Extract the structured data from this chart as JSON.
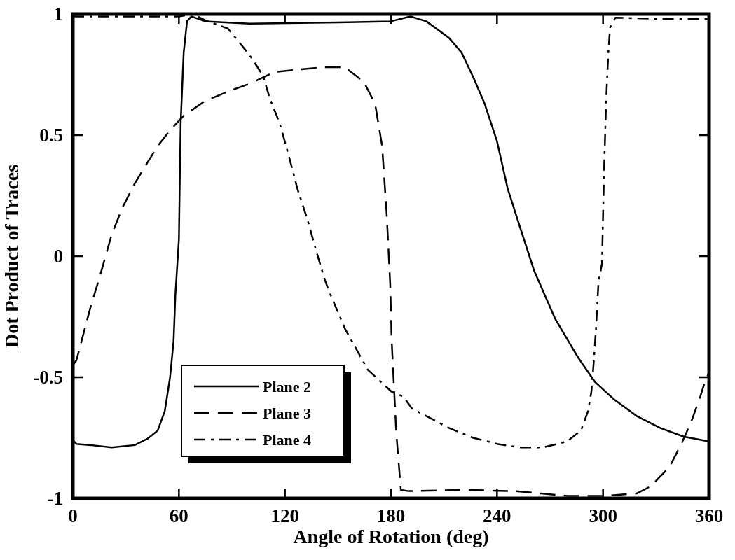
{
  "chart_data": {
    "type": "line",
    "xlabel": "Angle of Rotation (deg)",
    "ylabel": "Dot Product of Traces",
    "xlim": [
      0,
      360
    ],
    "xticks": [
      0,
      60,
      120,
      180,
      240,
      300,
      360
    ],
    "ylim": [
      -1,
      1
    ],
    "yticks": [
      -1,
      -0.5,
      0,
      0.5,
      1
    ],
    "grid": false,
    "legend": "bottom left",
    "series": [
      {
        "name": "Plane 2",
        "color": "#000000",
        "line_style": "solid",
        "x": [
          0,
          2,
          10,
          22,
          35,
          42,
          48,
          52,
          55,
          57,
          58,
          60,
          61,
          62.7,
          64.6,
          67,
          75,
          100,
          150,
          180,
          191,
          200,
          213,
          220,
          226.5,
          233,
          240,
          246,
          253,
          261,
          273,
          286,
          295.5,
          306,
          319,
          332.5,
          345.6,
          360
        ],
        "values": [
          -0.76,
          -0.775,
          -0.78,
          -0.79,
          -0.78,
          -0.755,
          -0.72,
          -0.64,
          -0.5,
          -0.35,
          -0.16,
          0.07,
          0.55,
          0.84,
          0.97,
          0.99,
          0.97,
          0.96,
          0.965,
          0.97,
          0.99,
          0.97,
          0.9,
          0.84,
          0.74,
          0.63,
          0.475,
          0.28,
          0.12,
          -0.06,
          -0.26,
          -0.42,
          -0.52,
          -0.59,
          -0.66,
          -0.71,
          -0.745,
          -0.765
        ]
      },
      {
        "name": "Plane 3",
        "color": "#000000",
        "line_style": "dashed",
        "x": [
          0,
          2,
          6,
          10,
          15,
          22,
          28,
          35,
          41.6,
          48,
          55,
          62.7,
          74.6,
          87.7,
          101,
          114,
          127,
          141,
          154,
          164.6,
          171,
          175,
          177.6,
          179.6,
          180.4,
          183,
          185.6,
          190,
          220,
          250,
          265,
          280,
          300,
          319,
          327,
          337.6,
          344,
          349.6,
          355,
          357.6,
          360
        ],
        "values": [
          -0.45,
          -0.43,
          -0.32,
          -0.21,
          -0.09,
          0.09,
          0.2,
          0.3,
          0.38,
          0.455,
          0.52,
          0.58,
          0.64,
          0.68,
          0.715,
          0.76,
          0.77,
          0.78,
          0.78,
          0.72,
          0.63,
          0.455,
          0.17,
          -0.12,
          -0.35,
          -0.73,
          -0.965,
          -0.97,
          -0.965,
          -0.97,
          -0.98,
          -0.99,
          -0.99,
          -0.98,
          -0.95,
          -0.87,
          -0.78,
          -0.69,
          -0.58,
          -0.52,
          -0.48
        ]
      },
      {
        "name": "Plane 4",
        "color": "#000000",
        "line_style": "dashdot",
        "x": [
          0,
          20,
          40,
          60,
          68,
          74.6,
          87.7,
          95.6,
          101,
          107.6,
          111.5,
          117,
          122,
          127,
          132.8,
          138,
          142.7,
          144.7,
          154,
          167,
          180.4,
          187,
          192,
          200,
          213,
          226.5,
          240,
          253,
          266,
          279.6,
          287.5,
          291.5,
          293.4,
          294.6,
          296,
          297.4,
          299.4,
          300.6,
          301.8,
          303,
          304,
          307,
          330,
          360
        ],
        "values": [
          0.99,
          0.99,
          0.99,
          0.99,
          1,
          0.975,
          0.94,
          0.87,
          0.82,
          0.745,
          0.65,
          0.55,
          0.42,
          0.28,
          0.15,
          0.014,
          -0.1,
          -0.14,
          -0.3,
          -0.47,
          -0.56,
          -0.58,
          -0.63,
          -0.66,
          -0.71,
          -0.75,
          -0.775,
          -0.79,
          -0.79,
          -0.765,
          -0.72,
          -0.64,
          -0.56,
          -0.45,
          -0.3,
          -0.11,
          -0.03,
          0.36,
          0.65,
          0.84,
          0.945,
          0.985,
          0.98,
          0.98
        ]
      }
    ]
  }
}
